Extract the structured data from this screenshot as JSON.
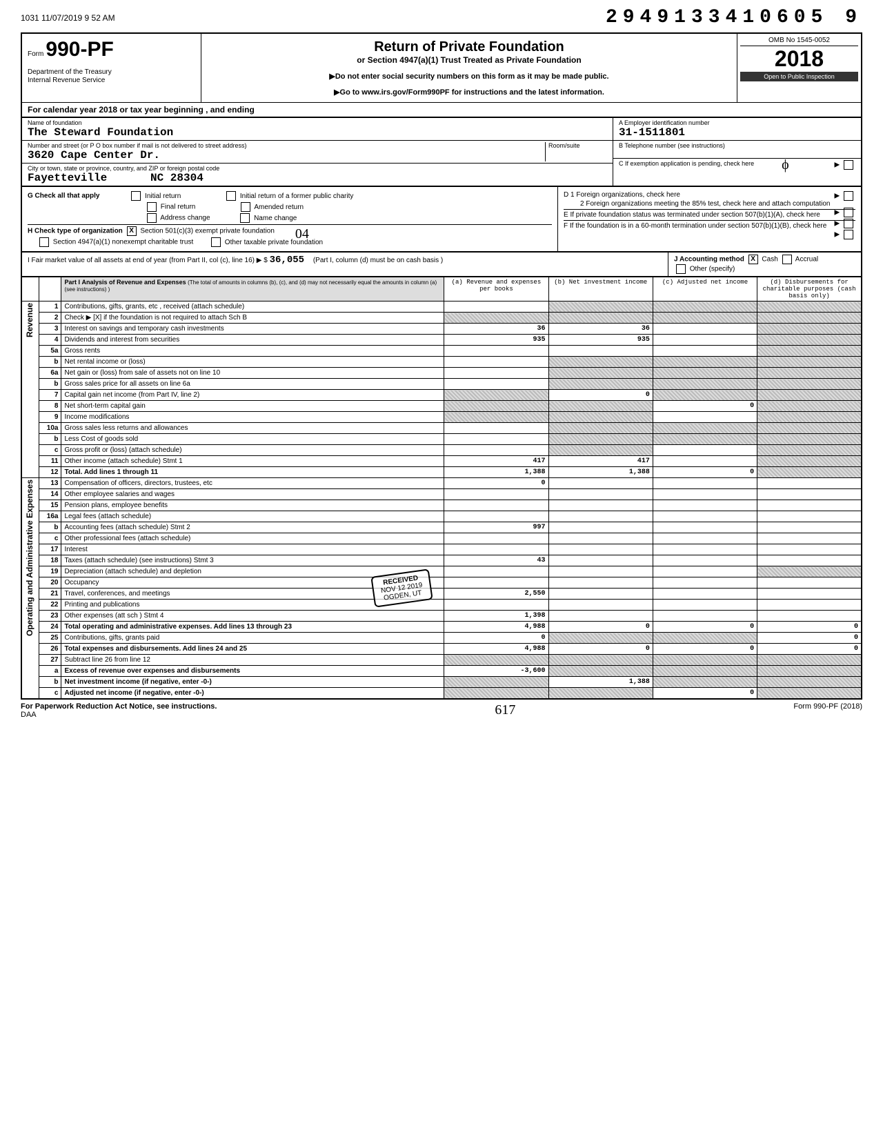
{
  "top": {
    "timestamp": "1031 11/07/2019 9 52 AM",
    "doc_id": "2949133410605 9"
  },
  "header": {
    "form_prefix": "Form",
    "form_number": "990-PF",
    "dept1": "Department of the Treasury",
    "dept2": "Internal Revenue Service",
    "title": "Return of Private Foundation",
    "subtitle": "or Section 4947(a)(1) Trust Treated as Private Foundation",
    "warn1": "▶Do not enter social security numbers on this form as it may be made public.",
    "warn2": "▶Go to www.irs.gov/Form990PF for instructions and the latest information.",
    "omb": "OMB No 1545-0052",
    "year": "2018",
    "inspection": "Open to Public Inspection"
  },
  "cal_year": "For calendar year 2018 or tax year beginning                              , and ending",
  "name": {
    "label_name": "Name of foundation",
    "foundation_name": "The Steward Foundation",
    "label_addr": "Number and street (or P O box number if mail is not delivered to street address)",
    "street": "3620 Cape Center Dr.",
    "label_city": "City or town, state or province, country, and ZIP or foreign postal code",
    "city": "Fayetteville",
    "state_zip": "NC  28304",
    "room_label": "Room/suite",
    "ein_label": "A   Employer identification number",
    "ein": "31-1511801",
    "tel_label": "B   Telephone number (see instructions)",
    "c_label": "C   If exemption application is pending, check here"
  },
  "checks": {
    "g_label": "G  Check all that apply",
    "g1": "Initial return",
    "g2": "Initial return of a former public charity",
    "g3": "Final return",
    "g4": "Amended return",
    "g5": "Address change",
    "g6": "Name change",
    "h_label": "H  Check type of organization",
    "h1": "Section 501(c)(3) exempt private foundation",
    "h2": "Section 4947(a)(1) nonexempt charitable trust",
    "h3": "Other taxable private foundation",
    "h_mark": "X",
    "h_hand": "04",
    "d_label": "D  1  Foreign organizations, check here",
    "d2": "2  Foreign organizations meeting the 85% test, check here and attach computation",
    "e_label": "E   If private foundation status was terminated under section 507(b)(1)(A), check here",
    "f_label": "F   If the foundation is in a 60-month termination under section 507(b)(1)(B), check here"
  },
  "fmv": {
    "i_label": "I  Fair market value of all assets at end of year (from Part II, col (c), line 16) ▶  $",
    "i_value": "36,055",
    "j_label": "J  Accounting method",
    "j1": "Cash",
    "j2": "Accrual",
    "j3": "Other (specify)",
    "j_mark": "X",
    "note": "(Part I, column (d) must be on cash basis )"
  },
  "part1": {
    "title": "Part I",
    "heading": "Analysis of Revenue and Expenses",
    "subheading": "(The total of amounts in columns (b), (c), and (d) may not necessarily equal the amounts in column (a) (see instructions) )",
    "col_a": "(a) Revenue and expenses per books",
    "col_b": "(b) Net investment income",
    "col_c": "(c) Adjusted net income",
    "col_d": "(d) Disbursements for charitable purposes (cash basis only)"
  },
  "section_labels": {
    "revenue": "Revenue",
    "expenses": "Operating and Administrative Expenses"
  },
  "rows": [
    {
      "n": "1",
      "desc": "Contributions, gifts, grants, etc , received (attach schedule)",
      "a": "",
      "b": "sh",
      "c": "sh",
      "d": "sh"
    },
    {
      "n": "2",
      "desc": "Check ▶  [X]  if the foundation is not required to attach Sch B",
      "a": "sh",
      "b": "sh",
      "c": "sh",
      "d": "sh"
    },
    {
      "n": "3",
      "desc": "Interest on savings and temporary cash investments",
      "a": "36",
      "b": "36",
      "c": "",
      "d": "sh"
    },
    {
      "n": "4",
      "desc": "Dividends and interest from securities",
      "a": "935",
      "b": "935",
      "c": "",
      "d": "sh"
    },
    {
      "n": "5a",
      "desc": "Gross rents",
      "a": "",
      "b": "",
      "c": "",
      "d": "sh"
    },
    {
      "n": "b",
      "desc": "Net rental income or (loss)",
      "a": "",
      "b": "sh",
      "c": "sh",
      "d": "sh"
    },
    {
      "n": "6a",
      "desc": "Net gain or (loss) from sale of assets not on line 10",
      "a": "",
      "b": "sh",
      "c": "sh",
      "d": "sh"
    },
    {
      "n": "b",
      "desc": "Gross sales price for all assets on line 6a",
      "a": "",
      "b": "sh",
      "c": "sh",
      "d": "sh"
    },
    {
      "n": "7",
      "desc": "Capital gain net income (from Part IV, line 2)",
      "a": "sh",
      "b": "0",
      "c": "sh",
      "d": "sh"
    },
    {
      "n": "8",
      "desc": "Net short-term capital gain",
      "a": "sh",
      "b": "sh",
      "c": "0",
      "d": "sh"
    },
    {
      "n": "9",
      "desc": "Income modifications",
      "a": "sh",
      "b": "sh",
      "c": "",
      "d": "sh"
    },
    {
      "n": "10a",
      "desc": "Gross sales less returns and allowances",
      "a": "",
      "b": "sh",
      "c": "sh",
      "d": "sh"
    },
    {
      "n": "b",
      "desc": "Less Cost of goods sold",
      "a": "",
      "b": "sh",
      "c": "sh",
      "d": "sh"
    },
    {
      "n": "c",
      "desc": "Gross profit or (loss) (attach schedule)",
      "a": "",
      "b": "sh",
      "c": "",
      "d": "sh"
    },
    {
      "n": "11",
      "desc": "Other income (attach schedule)            Stmt 1",
      "a": "417",
      "b": "417",
      "c": "",
      "d": "sh"
    },
    {
      "n": "12",
      "desc": "Total. Add lines 1 through 11",
      "a": "1,388",
      "b": "1,388",
      "c": "0",
      "d": "sh",
      "bold": true
    },
    {
      "n": "13",
      "desc": "Compensation of officers, directors, trustees, etc",
      "a": "0",
      "b": "",
      "c": "",
      "d": ""
    },
    {
      "n": "14",
      "desc": "Other employee salaries and wages",
      "a": "",
      "b": "",
      "c": "",
      "d": ""
    },
    {
      "n": "15",
      "desc": "Pension plans, employee benefits",
      "a": "",
      "b": "",
      "c": "",
      "d": ""
    },
    {
      "n": "16a",
      "desc": "Legal fees (attach schedule)",
      "a": "",
      "b": "",
      "c": "",
      "d": ""
    },
    {
      "n": "b",
      "desc": "Accounting fees (attach schedule)          Stmt 2",
      "a": "997",
      "b": "",
      "c": "",
      "d": ""
    },
    {
      "n": "c",
      "desc": "Other professional fees (attach schedule)",
      "a": "",
      "b": "",
      "c": "",
      "d": ""
    },
    {
      "n": "17",
      "desc": "Interest",
      "a": "",
      "b": "",
      "c": "",
      "d": ""
    },
    {
      "n": "18",
      "desc": "Taxes (attach schedule) (see instructions)     Stmt 3",
      "a": "43",
      "b": "",
      "c": "",
      "d": ""
    },
    {
      "n": "19",
      "desc": "Depreciation (attach schedule) and depletion",
      "a": "",
      "b": "",
      "c": "",
      "d": "sh"
    },
    {
      "n": "20",
      "desc": "Occupancy",
      "a": "",
      "b": "",
      "c": "",
      "d": ""
    },
    {
      "n": "21",
      "desc": "Travel, conferences, and meetings",
      "a": "2,550",
      "b": "",
      "c": "",
      "d": ""
    },
    {
      "n": "22",
      "desc": "Printing and publications",
      "a": "",
      "b": "",
      "c": "",
      "d": ""
    },
    {
      "n": "23",
      "desc": "Other expenses (att sch )                    Stmt 4",
      "a": "1,398",
      "b": "",
      "c": "",
      "d": ""
    },
    {
      "n": "24",
      "desc": "Total operating and administrative expenses. Add lines 13 through 23",
      "a": "4,988",
      "b": "0",
      "c": "0",
      "d": "0",
      "bold": true
    },
    {
      "n": "25",
      "desc": "Contributions, gifts, grants paid",
      "a": "0",
      "b": "sh",
      "c": "sh",
      "d": "0"
    },
    {
      "n": "26",
      "desc": "Total expenses and disbursements. Add lines 24 and 25",
      "a": "4,988",
      "b": "0",
      "c": "0",
      "d": "0",
      "bold": true
    },
    {
      "n": "27",
      "desc": "Subtract line 26 from line 12",
      "a": "sh",
      "b": "sh",
      "c": "sh",
      "d": "sh"
    },
    {
      "n": "a",
      "desc": "Excess of revenue over expenses and disbursements",
      "a": "-3,600",
      "b": "sh",
      "c": "sh",
      "d": "sh",
      "bold": true
    },
    {
      "n": "b",
      "desc": "Net investment income (if negative, enter -0-)",
      "a": "sh",
      "b": "1,388",
      "c": "sh",
      "d": "sh",
      "bold": true
    },
    {
      "n": "c",
      "desc": "Adjusted net income (if negative, enter -0-)",
      "a": "sh",
      "b": "sh",
      "c": "0",
      "d": "sh",
      "bold": true
    }
  ],
  "footer": {
    "left": "For Paperwork Reduction Act Notice, see instructions.",
    "daa": "DAA",
    "hand": "617",
    "right": "Form 990-PF (2018)"
  },
  "stamp": {
    "l1": "RECEIVED",
    "l2": "NOV 12 2019",
    "l3": "OGDEN, UT"
  }
}
